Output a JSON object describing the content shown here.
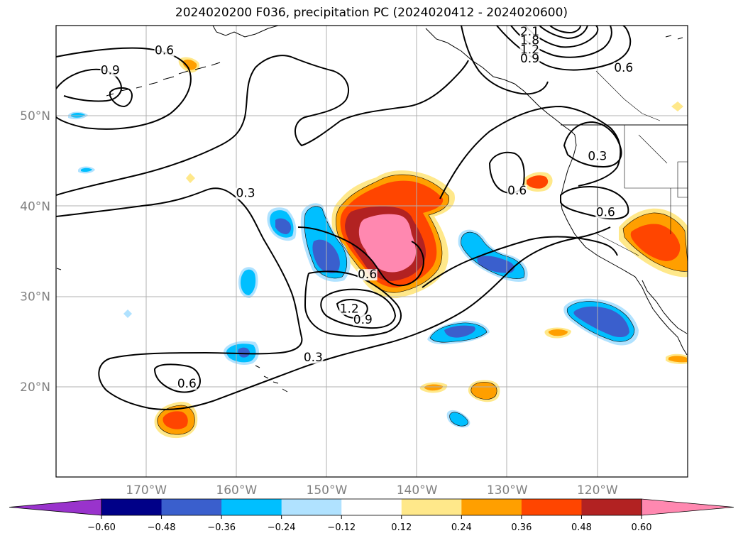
{
  "title": "2024020200 F036, precipitation PC (2024020412 - 2024020600)",
  "map": {
    "region": "North Pacific",
    "projection": "PlateCarree",
    "lon_range": [
      -180,
      -110
    ],
    "lat_range": [
      10,
      60
    ],
    "grid": true,
    "lat_ticks": [
      {
        "value": 50,
        "label": "50°N"
      },
      {
        "value": 40,
        "label": "40°N"
      },
      {
        "value": 30,
        "label": "30°N"
      },
      {
        "value": 20,
        "label": "20°N"
      }
    ],
    "lon_ticks": [
      {
        "value": -170,
        "label": "170°W"
      },
      {
        "value": -160,
        "label": "160°W"
      },
      {
        "value": -150,
        "label": "150°W"
      },
      {
        "value": -140,
        "label": "140°W"
      },
      {
        "value": -130,
        "label": "130°W"
      },
      {
        "value": -120,
        "label": "120°W"
      }
    ],
    "contour_labels": [
      {
        "text": "0.6",
        "lon": -168,
        "lat": 56.8
      },
      {
        "text": "0.9",
        "lon": -174,
        "lat": 54.6
      },
      {
        "text": "0.3",
        "lon": -159,
        "lat": 41.0
      },
      {
        "text": "0.6",
        "lon": -145.5,
        "lat": 32.0
      },
      {
        "text": "1.2",
        "lon": -147.5,
        "lat": 28.2
      },
      {
        "text": "0.9",
        "lon": -146,
        "lat": 27.0
      },
      {
        "text": "0.3",
        "lon": -151.5,
        "lat": 22.8
      },
      {
        "text": "0.6",
        "lon": -165.5,
        "lat": 19.9
      },
      {
        "text": "2.1",
        "lon": -127.5,
        "lat": 58.9
      },
      {
        "text": "1.8",
        "lon": -127.5,
        "lat": 57.9
      },
      {
        "text": "1.2",
        "lon": -127.5,
        "lat": 56.9
      },
      {
        "text": "0.9",
        "lon": -127.5,
        "lat": 55.9
      },
      {
        "text": "0.6",
        "lon": -117.1,
        "lat": 54.9
      },
      {
        "text": "0.3",
        "lon": -120,
        "lat": 45.1
      },
      {
        "text": "0.6",
        "lon": -128.9,
        "lat": 41.3
      },
      {
        "text": "0.6",
        "lon": -119.1,
        "lat": 38.9
      }
    ]
  },
  "colorbar": {
    "extend": "both",
    "colors": [
      "#9933cc",
      "#000088",
      "#3a5fcd",
      "#00bfff",
      "#b0e2ff",
      "#ffffff",
      "#ffe88a",
      "#ff9f00",
      "#ff4500",
      "#b22222",
      "#ff88b0"
    ],
    "ticks": [
      "−0.60",
      "−0.48",
      "−0.36",
      "−0.24",
      "−0.12",
      "0.12",
      "0.24",
      "0.36",
      "0.48",
      "0.60"
    ]
  },
  "chart_data": {
    "type": "heatmap",
    "title": "2024020200 F036, precipitation PC (2024020412 - 2024020600)",
    "variable": "precipitation PC",
    "levels": [
      -0.6,
      -0.48,
      -0.36,
      -0.24,
      -0.12,
      0.12,
      0.24,
      0.36,
      0.48,
      0.6
    ],
    "contour_levels": [
      0.3,
      0.6,
      0.9,
      1.2,
      1.8,
      2.1
    ],
    "xlim": [
      -180,
      -110
    ],
    "ylim": [
      10,
      60
    ],
    "features": [
      {
        "sign": "positive",
        "peak": 0.6,
        "lon": -143,
        "lat": 36
      },
      {
        "sign": "positive",
        "peak": 0.48,
        "lon": -115,
        "lat": 36
      },
      {
        "sign": "positive",
        "peak": 0.36,
        "lon": -166,
        "lat": 16
      },
      {
        "sign": "positive",
        "peak": 0.36,
        "lon": -126,
        "lat": 42.5
      },
      {
        "sign": "positive",
        "peak": 0.36,
        "lon": -132,
        "lat": 20
      },
      {
        "sign": "negative",
        "peak": -0.36,
        "lon": -150,
        "lat": 34
      },
      {
        "sign": "negative",
        "peak": -0.36,
        "lon": -119,
        "lat": 28
      },
      {
        "sign": "negative",
        "peak": -0.36,
        "lon": -134,
        "lat": 25
      },
      {
        "sign": "negative",
        "peak": -0.36,
        "lon": -131,
        "lat": 33.8
      }
    ]
  }
}
